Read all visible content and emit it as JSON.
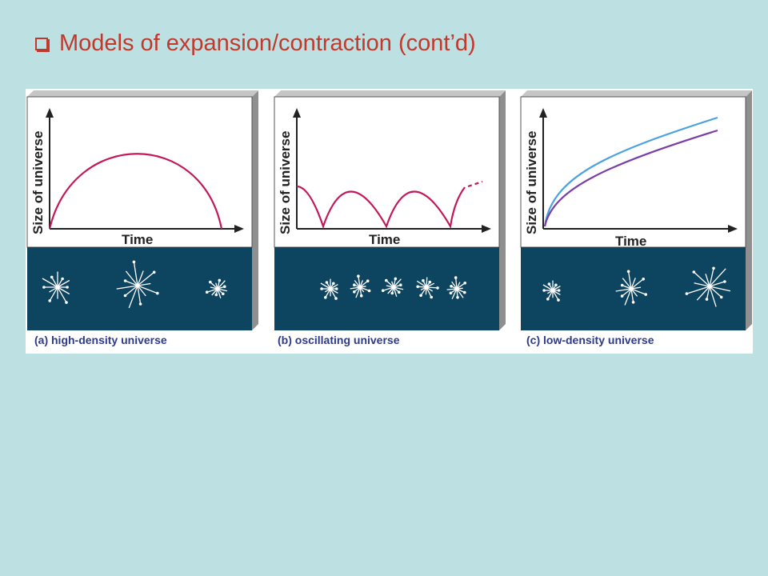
{
  "title": "Models of expansion/contraction  (cont’d)",
  "colors": {
    "background": "#bde0e3",
    "title": "#c0392b",
    "curve": "#c2185b",
    "curve_blue": "#4aa3df",
    "curve_purple": "#7a3fa6",
    "starfield": "#0d4460",
    "caption": "#2d3a8c"
  },
  "panels": [
    {
      "id": "a",
      "caption": "(a) high-density universe",
      "xlabel": "Time",
      "ylabel": "Size of universe",
      "bursts": [
        {
          "size": "medium"
        },
        {
          "size": "large"
        },
        {
          "size": "small"
        }
      ]
    },
    {
      "id": "b",
      "caption": "(b)  oscillating universe",
      "xlabel": "Time",
      "ylabel": "Size of universe",
      "bursts": [
        {
          "size": "small"
        },
        {
          "size": "small"
        },
        {
          "size": "small"
        },
        {
          "size": "small"
        },
        {
          "size": "small"
        }
      ]
    },
    {
      "id": "c",
      "caption": "(c) low-density  universe",
      "xlabel": "Time",
      "ylabel": "Size of universe",
      "bursts": [
        {
          "size": "small"
        },
        {
          "size": "medium"
        },
        {
          "size": "large"
        }
      ]
    }
  ]
}
